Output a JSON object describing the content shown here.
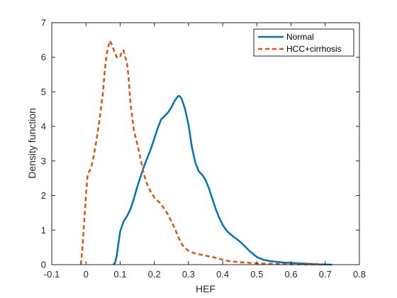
{
  "chart_data": {
    "type": "line",
    "title": "",
    "xlabel": "HEF",
    "ylabel": "Density function",
    "xlim": [
      -0.1,
      0.8
    ],
    "ylim": [
      0,
      7
    ],
    "xticks": [
      -0.1,
      0,
      0.1,
      0.2,
      0.3,
      0.4,
      0.5,
      0.6,
      0.7,
      0.8
    ],
    "xtick_labels": [
      "-0.1",
      "0",
      "0.1",
      "0.2",
      "0.3",
      "0.4",
      "0.5",
      "0.6",
      "0.7",
      "0.8"
    ],
    "yticks": [
      0,
      1,
      2,
      3,
      4,
      5,
      6,
      7
    ],
    "ytick_labels": [
      "0",
      "1",
      "2",
      "3",
      "4",
      "5",
      "6",
      "7"
    ],
    "grid": false,
    "legend_position": "top-right",
    "series": [
      {
        "name": "Normal",
        "color": "#0072BD",
        "style": "solid",
        "points": [
          [
            0.08,
            0.0
          ],
          [
            0.085,
            0.05
          ],
          [
            0.09,
            0.25
          ],
          [
            0.095,
            0.6
          ],
          [
            0.1,
            0.95
          ],
          [
            0.11,
            1.25
          ],
          [
            0.12,
            1.4
          ],
          [
            0.13,
            1.6
          ],
          [
            0.14,
            1.9
          ],
          [
            0.15,
            2.25
          ],
          [
            0.16,
            2.55
          ],
          [
            0.17,
            2.85
          ],
          [
            0.18,
            3.1
          ],
          [
            0.19,
            3.35
          ],
          [
            0.2,
            3.65
          ],
          [
            0.21,
            3.95
          ],
          [
            0.22,
            4.2
          ],
          [
            0.23,
            4.3
          ],
          [
            0.24,
            4.4
          ],
          [
            0.25,
            4.55
          ],
          [
            0.26,
            4.75
          ],
          [
            0.27,
            4.88
          ],
          [
            0.275,
            4.87
          ],
          [
            0.28,
            4.8
          ],
          [
            0.29,
            4.5
          ],
          [
            0.3,
            4.05
          ],
          [
            0.31,
            3.4
          ],
          [
            0.32,
            2.95
          ],
          [
            0.33,
            2.7
          ],
          [
            0.34,
            2.6
          ],
          [
            0.35,
            2.45
          ],
          [
            0.36,
            2.2
          ],
          [
            0.37,
            1.9
          ],
          [
            0.38,
            1.6
          ],
          [
            0.39,
            1.35
          ],
          [
            0.4,
            1.15
          ],
          [
            0.41,
            1.0
          ],
          [
            0.42,
            0.9
          ],
          [
            0.43,
            0.82
          ],
          [
            0.44,
            0.75
          ],
          [
            0.45,
            0.67
          ],
          [
            0.46,
            0.58
          ],
          [
            0.47,
            0.48
          ],
          [
            0.48,
            0.38
          ],
          [
            0.49,
            0.3
          ],
          [
            0.5,
            0.22
          ],
          [
            0.52,
            0.14
          ],
          [
            0.54,
            0.1
          ],
          [
            0.56,
            0.08
          ],
          [
            0.58,
            0.06
          ],
          [
            0.6,
            0.05
          ],
          [
            0.62,
            0.04
          ],
          [
            0.64,
            0.03
          ],
          [
            0.66,
            0.02
          ],
          [
            0.68,
            0.01
          ],
          [
            0.7,
            0.005
          ],
          [
            0.72,
            0.0
          ]
        ]
      },
      {
        "name": "HCC+cirrhosis",
        "color": "#D95319",
        "style": "dashed",
        "points": [
          [
            -0.015,
            0.0
          ],
          [
            -0.01,
            0.5
          ],
          [
            -0.005,
            1.25
          ],
          [
            0.0,
            2.0
          ],
          [
            0.005,
            2.6
          ],
          [
            0.01,
            2.7
          ],
          [
            0.015,
            2.8
          ],
          [
            0.02,
            3.0
          ],
          [
            0.03,
            3.55
          ],
          [
            0.04,
            4.2
          ],
          [
            0.05,
            5.0
          ],
          [
            0.055,
            5.6
          ],
          [
            0.06,
            6.05
          ],
          [
            0.065,
            6.3
          ],
          [
            0.07,
            6.48
          ],
          [
            0.075,
            6.38
          ],
          [
            0.08,
            6.25
          ],
          [
            0.09,
            6.0
          ],
          [
            0.1,
            6.0
          ],
          [
            0.105,
            6.18
          ],
          [
            0.11,
            6.2
          ],
          [
            0.115,
            6.0
          ],
          [
            0.12,
            5.85
          ],
          [
            0.125,
            5.4
          ],
          [
            0.13,
            4.7
          ],
          [
            0.14,
            3.9
          ],
          [
            0.15,
            3.5
          ],
          [
            0.16,
            3.05
          ],
          [
            0.17,
            2.6
          ],
          [
            0.18,
            2.3
          ],
          [
            0.19,
            2.1
          ],
          [
            0.2,
            1.95
          ],
          [
            0.21,
            1.85
          ],
          [
            0.22,
            1.75
          ],
          [
            0.23,
            1.6
          ],
          [
            0.24,
            1.45
          ],
          [
            0.25,
            1.25
          ],
          [
            0.26,
            1.05
          ],
          [
            0.27,
            0.8
          ],
          [
            0.28,
            0.6
          ],
          [
            0.29,
            0.48
          ],
          [
            0.3,
            0.4
          ],
          [
            0.32,
            0.32
          ],
          [
            0.34,
            0.28
          ],
          [
            0.36,
            0.24
          ],
          [
            0.38,
            0.2
          ],
          [
            0.4,
            0.14
          ],
          [
            0.42,
            0.1
          ],
          [
            0.45,
            0.07
          ],
          [
            0.48,
            0.05
          ],
          [
            0.52,
            0.03
          ],
          [
            0.56,
            0.02
          ],
          [
            0.6,
            0.01
          ],
          [
            0.65,
            0.005
          ],
          [
            0.7,
            0.0
          ]
        ]
      }
    ]
  }
}
